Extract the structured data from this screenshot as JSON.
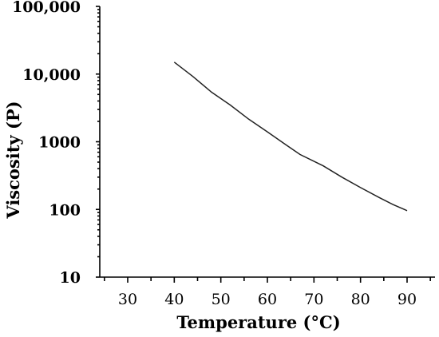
{
  "chart_data": {
    "type": "line",
    "title": "",
    "xlabel": "Temperature (°C)",
    "ylabel": "Viscosity (P)",
    "x_scale": "linear",
    "y_scale": "log",
    "xlim": [
      24,
      96
    ],
    "ylim": [
      10,
      100000
    ],
    "grid": false,
    "x_ticks": [
      30,
      40,
      50,
      60,
      70,
      80,
      90
    ],
    "x_tick_labels": [
      "30",
      "40",
      "50",
      "60",
      "70",
      "80",
      "90"
    ],
    "y_ticks": [
      10,
      100,
      1000,
      10000,
      100000
    ],
    "y_tick_labels": [
      "10",
      "100",
      "1000",
      "10,000",
      "100,000"
    ],
    "series": [
      {
        "color": "#222222",
        "x": [
          40,
          44,
          48,
          52,
          56,
          60,
          64,
          67,
          72,
          76,
          80,
          84,
          87,
          90
        ],
        "y": [
          15000,
          9200,
          5400,
          3500,
          2150,
          1400,
          900,
          650,
          440,
          300,
          210,
          150,
          118,
          96
        ]
      }
    ]
  }
}
